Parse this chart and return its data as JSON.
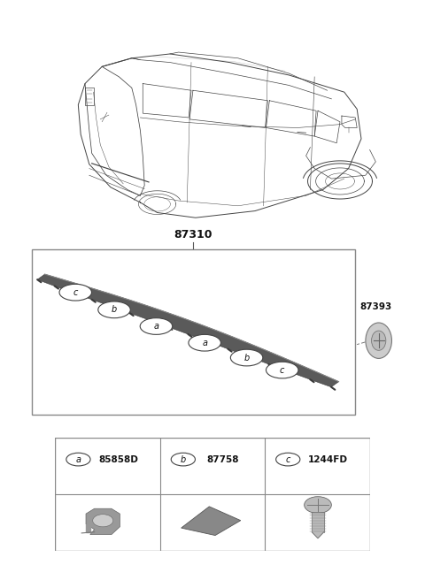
{
  "bg_color": "#ffffff",
  "text_color": "#111111",
  "part_number_main": "87310",
  "part_number_87393": "87393",
  "legend_items": [
    {
      "label": "a",
      "code": "85858D"
    },
    {
      "label": "b",
      "code": "87758"
    },
    {
      "label": "c",
      "code": "1244FD"
    }
  ],
  "callouts": [
    {
      "label": "c",
      "bx": 0.135,
      "by": 0.74
    },
    {
      "label": "b",
      "bx": 0.255,
      "by": 0.635
    },
    {
      "label": "a",
      "bx": 0.385,
      "by": 0.535
    },
    {
      "label": "a",
      "bx": 0.535,
      "by": 0.435
    },
    {
      "label": "b",
      "bx": 0.665,
      "by": 0.345
    },
    {
      "label": "c",
      "bx": 0.775,
      "by": 0.27
    }
  ]
}
